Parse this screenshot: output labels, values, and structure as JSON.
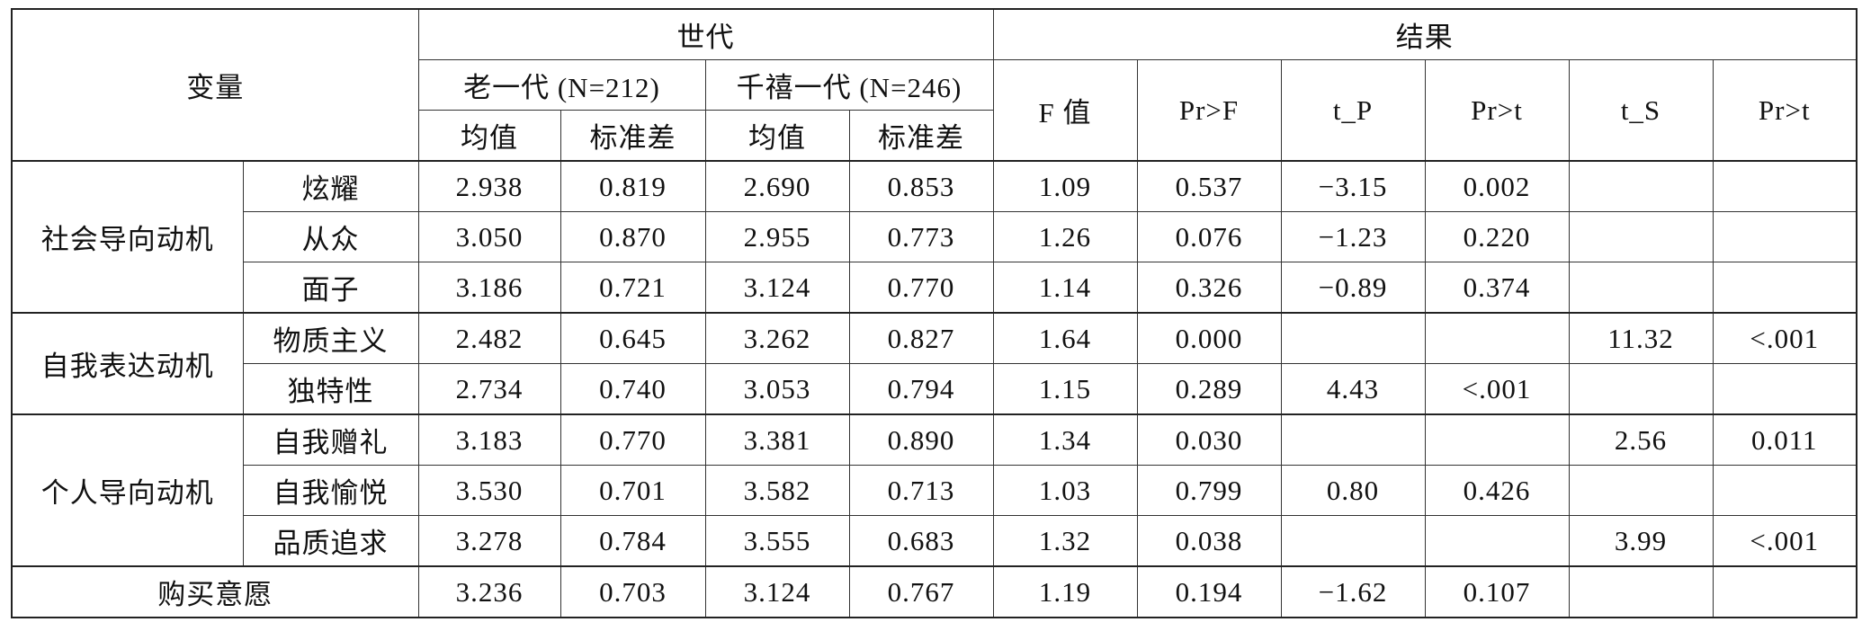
{
  "table": {
    "header": {
      "variable": "变量",
      "generation": "世代",
      "result": "结果",
      "groups": [
        "老一代 (N=212)",
        "千禧一代 (N=246)"
      ],
      "stats": [
        "均值",
        "标准差",
        "均值",
        "标准差"
      ],
      "results": [
        "F 值",
        "Pr>F",
        "t_P",
        "Pr>t",
        "t_S",
        "Pr>t"
      ]
    },
    "sections": [
      {
        "name": "社会导向动机",
        "rows": [
          [
            "炫耀",
            "2.938",
            "0.819",
            "2.690",
            "0.853",
            "1.09",
            "0.537",
            "−3.15",
            "0.002",
            null,
            null
          ],
          [
            "从众",
            "3.050",
            "0.870",
            "2.955",
            "0.773",
            "1.26",
            "0.076",
            "−1.23",
            "0.220",
            null,
            null
          ],
          [
            "面子",
            "3.186",
            "0.721",
            "3.124",
            "0.770",
            "1.14",
            "0.326",
            "−0.89",
            "0.374",
            null,
            null
          ]
        ]
      },
      {
        "name": "自我表达动机",
        "rows": [
          [
            "物质主义",
            "2.482",
            "0.645",
            "3.262",
            "0.827",
            "1.64",
            "0.000",
            null,
            null,
            "11.32",
            "<.001"
          ],
          [
            "独特性",
            "2.734",
            "0.740",
            "3.053",
            "0.794",
            "1.15",
            "0.289",
            "4.43",
            "<.001",
            null,
            null
          ]
        ]
      },
      {
        "name": "个人导向动机",
        "rows": [
          [
            "自我赠礼",
            "3.183",
            "0.770",
            "3.381",
            "0.890",
            "1.34",
            "0.030",
            null,
            null,
            "2.56",
            "0.011"
          ],
          [
            "自我愉悦",
            "3.530",
            "0.701",
            "3.582",
            "0.713",
            "1.03",
            "0.799",
            "0.80",
            "0.426",
            null,
            null
          ],
          [
            "品质追求",
            "3.278",
            "0.784",
            "3.555",
            "0.683",
            "1.32",
            "0.038",
            null,
            null,
            "3.99",
            "<.001"
          ]
        ]
      }
    ],
    "total": [
      "购买意愿",
      "3.236",
      "0.703",
      "3.124",
      "0.767",
      "1.19",
      "0.194",
      "−1.62",
      "0.107",
      null,
      null
    ]
  }
}
